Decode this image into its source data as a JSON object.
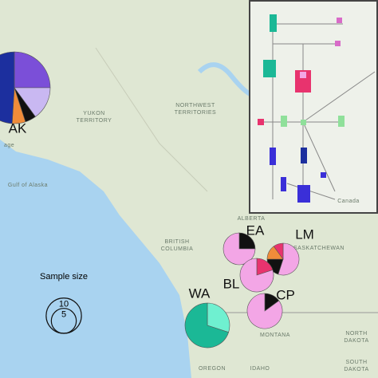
{
  "map_labels": [
    "YUKON",
    "TERRITORY",
    "NORTHWEST",
    "TERRITORIES",
    "Gulf of Alaska",
    "ALBERTA",
    "BRITISH",
    "COLUMBIA",
    "SASKATCHEWAN",
    "MONTANA",
    "NORTH",
    "DAKOTA",
    "SOUTH",
    "DAKOTA",
    "OREGON",
    "IDAHO",
    "Canada",
    "age"
  ],
  "pies": [
    {
      "label": "AK",
      "slices": [
        {
          "color": "#7b4fd8",
          "value": 25
        },
        {
          "color": "#c9b8f2",
          "value": 15
        },
        {
          "color": "#111111",
          "value": 5
        },
        {
          "color": "#f08c3a",
          "value": 6
        },
        {
          "color": "#1c2f9e",
          "value": 49
        }
      ]
    },
    {
      "label": "EA",
      "slices": [
        {
          "color": "#111111",
          "value": 25
        },
        {
          "color": "#f3a6e6",
          "value": 75
        }
      ]
    },
    {
      "label": "LM",
      "slices": [
        {
          "color": "#f3a6e6",
          "value": 55
        },
        {
          "color": "#111111",
          "value": 20
        },
        {
          "color": "#f08c3a",
          "value": 15
        },
        {
          "color": "#e8336e",
          "value": 10
        }
      ]
    },
    {
      "label": "BL",
      "slices": [
        {
          "color": "#e8336e",
          "value": 20
        },
        {
          "color": "#f3a6e6",
          "value": 80
        }
      ]
    },
    {
      "label": "CP",
      "slices": [
        {
          "color": "#111111",
          "value": 15
        },
        {
          "color": "#f3a6e6",
          "value": 85
        }
      ]
    },
    {
      "label": "WA",
      "slices": [
        {
          "color": "#6ff0d0",
          "value": 30
        },
        {
          "color": "#1bb896",
          "value": 70
        }
      ]
    }
  ],
  "sample_size_legend": {
    "title": "Sample size",
    "sizes": [
      10,
      5
    ]
  }
}
